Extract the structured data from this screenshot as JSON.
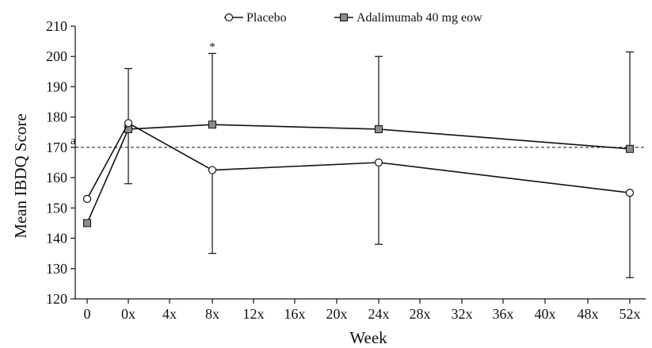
{
  "chart_data": {
    "type": "line",
    "title": "",
    "xlabel": "Week",
    "ylabel": "Mean IBDQ Score",
    "categories": [
      "0",
      "0x",
      "4x",
      "8x",
      "12x",
      "16x",
      "20x",
      "24x",
      "28x",
      "32x",
      "36x",
      "40x",
      "48x",
      "52x"
    ],
    "yticks": [
      120,
      130,
      140,
      150,
      160,
      170,
      180,
      190,
      200,
      210
    ],
    "ylim": [
      120,
      210
    ],
    "grid": false,
    "legend_position": "top-center",
    "reference_line": {
      "value": 170,
      "label": "a",
      "style": "dashed"
    },
    "series": [
      {
        "name": "Placebo",
        "marker": "circle-open",
        "points": [
          {
            "x": "0",
            "y": 153
          },
          {
            "x": "0x",
            "y": 178,
            "err_high": 196
          },
          {
            "x": "8x",
            "y": 162.5,
            "err_low": 135
          },
          {
            "x": "24x",
            "y": 165,
            "err_low": 138
          },
          {
            "x": "52x",
            "y": 155,
            "err_low": 127
          }
        ]
      },
      {
        "name": "Adalimumab 40 mg eow",
        "marker": "square-filled",
        "points": [
          {
            "x": "0",
            "y": 145
          },
          {
            "x": "0x",
            "y": 176,
            "err_low": 158
          },
          {
            "x": "8x",
            "y": 177.5,
            "err_high": 201,
            "annotation": "*"
          },
          {
            "x": "24x",
            "y": 176,
            "err_high": 200
          },
          {
            "x": "52x",
            "y": 169.5,
            "err_high": 201.5
          }
        ]
      }
    ],
    "colors": {
      "line": "#111111",
      "square_fill": "#8c8c8c",
      "circle_fill": "#ffffff"
    }
  }
}
